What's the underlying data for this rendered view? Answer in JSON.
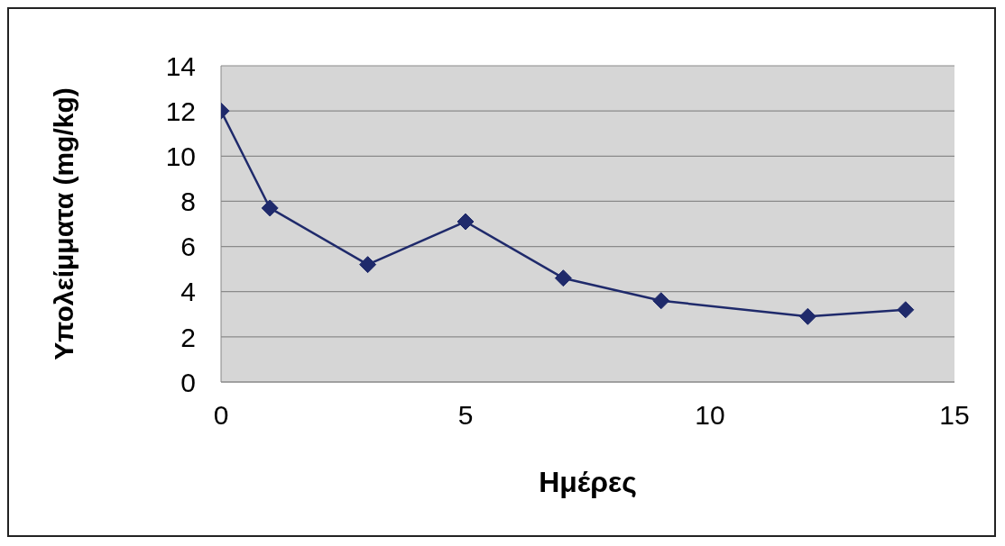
{
  "chart_data": {
    "type": "line",
    "xlabel": "Ημέρες",
    "ylabel": "Υπολείμματα (mg/kg)",
    "x": [
      0,
      1,
      3,
      5,
      7,
      9,
      12,
      14
    ],
    "series": [
      {
        "color": "#1f2a6b",
        "values": [
          12,
          7.7,
          5.2,
          7.1,
          4.6,
          3.6,
          2.9,
          3.2
        ]
      }
    ],
    "xlim": [
      0,
      15
    ],
    "xticks": [
      0,
      5,
      10,
      15
    ],
    "ylim": [
      0,
      14
    ],
    "yticks": [
      0,
      2,
      4,
      6,
      8,
      10,
      12,
      14
    ],
    "grid": "y",
    "legend": false,
    "marker": "diamond",
    "line_style": "solid"
  }
}
